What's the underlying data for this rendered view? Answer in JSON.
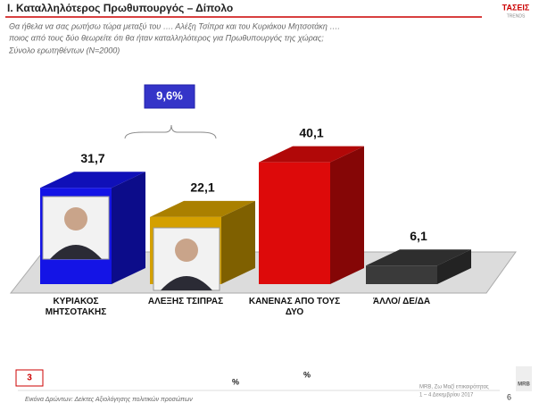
{
  "chart_data": {
    "type": "bar3d",
    "title": "Ι. Καταλληλότερος Πρωθυπουργός – Δίπολο",
    "subtitle": [
      "Θα ήθελα να σας ρωτήσω τώρα μεταξύ του …. Αλέξη Τσίπρα και του Κυριάκου Μητσοτάκη ….",
      "ποιος από τους δύο θεωρείτε ότι θα ήταν καταλληλότερος για Πρωθυπουργός της χώρας;",
      "Σύνολο ερωτηθέντων (Ν=2000)"
    ],
    "categories": [
      "ΚΥΡΙΑΚΟΣ ΜΗΤΣΟΤΑΚΗΣ",
      "ΑΛΕΞΗΣ ΤΣΙΠΡΑΣ",
      "ΚΑΝΕΝΑΣ ΑΠΟ ΤΟΥΣ ΔΥΟ",
      "ΆΛΛΟ/ ΔΕ/ΔΑ"
    ],
    "values": [
      31.7,
      22.1,
      40.1,
      6.1
    ],
    "value_labels": [
      "31,7",
      "22,1",
      "40,1",
      "6,1"
    ],
    "colors": [
      "#1414e6",
      "#d4a000",
      "#dd0a0a",
      "#3a3a3a"
    ],
    "annotation": "9,6%"
  },
  "logo": {
    "brand": "ΤΑΣΕΙΣ",
    "sub": "TRENDS",
    "mrb": "MRB"
  },
  "footer": {
    "box": "3",
    "percent_a": "%",
    "percent_b": "%",
    "note": "Εικόνα Δρώντων: Δείκτες Αξιολόγησης πολιτικών προσώπων",
    "source": [
      "MRB, Ζω Μαζί επικαιρότητας",
      "1 – 4 Δεκεμβρίου 2017"
    ],
    "page": "6"
  }
}
